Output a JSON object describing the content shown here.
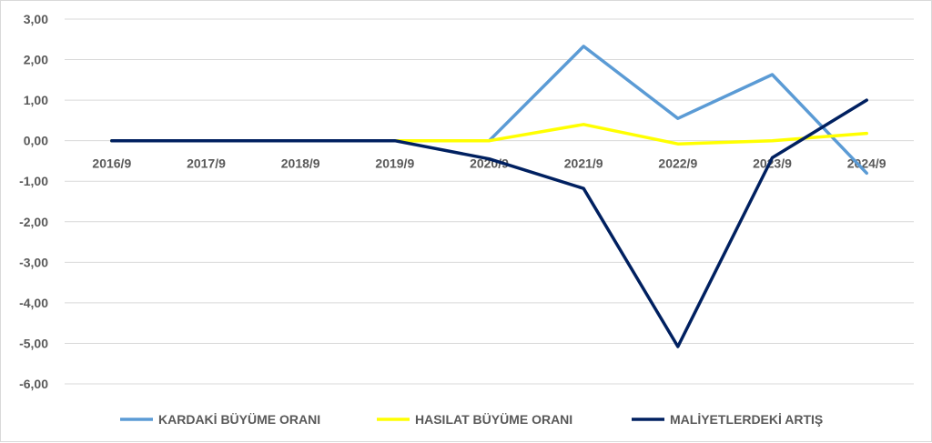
{
  "chart_data": {
    "type": "line",
    "title": "",
    "xlabel": "",
    "ylabel": "",
    "categories": [
      "2016/9",
      "2017/9",
      "2018/9",
      "2019/9",
      "2020/9",
      "2021/9",
      "2022/9",
      "2023/9",
      "2024/9"
    ],
    "y_ticks": [
      "3,00",
      "2,00",
      "1,00",
      "0,00",
      "-1,00",
      "-2,00",
      "-3,00",
      "-4,00",
      "-5,00",
      "-6,00"
    ],
    "ylim": [
      -6,
      3
    ],
    "grid": true,
    "legend_position": "bottom",
    "series": [
      {
        "name": "KARDAKİ BÜYÜME ORANI",
        "color": "#5b9bd5",
        "values": [
          0,
          0,
          0,
          0,
          0,
          2.33,
          0.55,
          1.63,
          -0.8
        ]
      },
      {
        "name": "HASILAT BÜYÜME ORANI",
        "color": "#ffff00",
        "values": [
          0,
          0,
          0,
          0,
          0,
          0.4,
          -0.08,
          0,
          0.18
        ]
      },
      {
        "name": "MALİYETLERDEKİ ARTIŞ",
        "color": "#002060",
        "values": [
          0,
          0,
          0,
          0,
          -0.45,
          -1.18,
          -5.08,
          -0.42,
          1.0
        ]
      }
    ]
  }
}
